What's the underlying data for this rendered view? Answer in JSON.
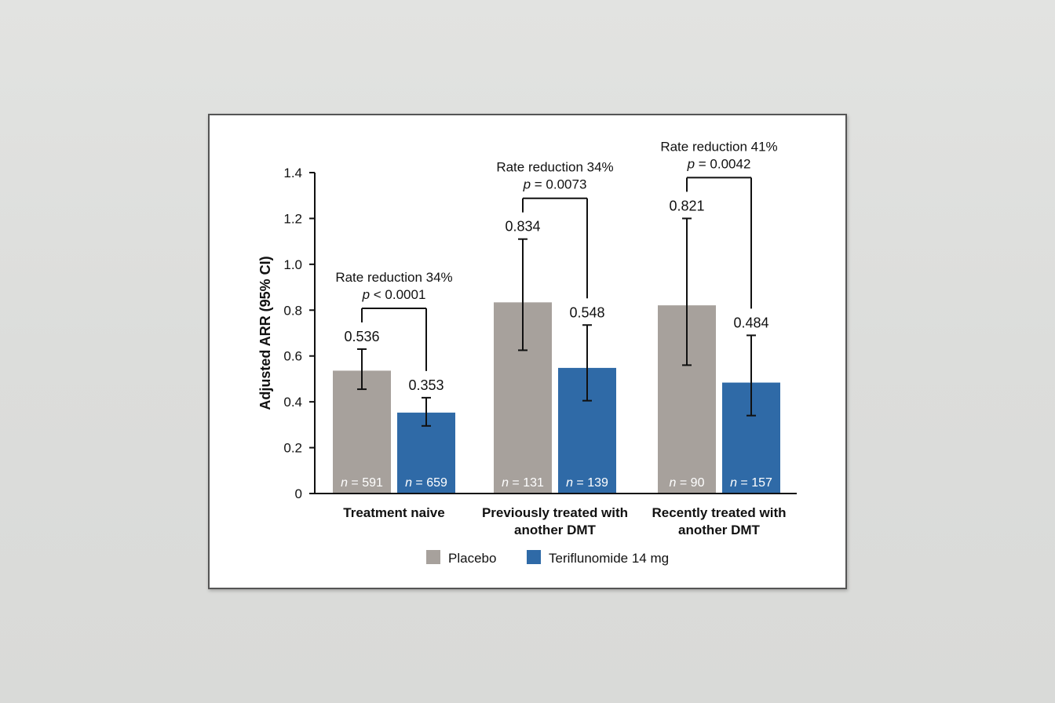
{
  "chart_data": {
    "type": "bar",
    "ylabel": "Adjusted ARR (95% CI)",
    "ylim": [
      0,
      1.4
    ],
    "yticks": [
      "0",
      "0.2",
      "0.4",
      "0.6",
      "0.8",
      "1.0",
      "1.2",
      "1.4"
    ],
    "categories": [
      [
        "Treatment naive"
      ],
      [
        "Previously treated with",
        "another DMT"
      ],
      [
        "Recently treated with",
        "another DMT"
      ]
    ],
    "series": [
      {
        "name": "Placebo",
        "color": "#a7a19c",
        "values": [
          0.536,
          0.834,
          0.821
        ],
        "value_labels": [
          "0.536",
          "0.834",
          "0.821"
        ],
        "ci": [
          [
            0.455,
            0.63
          ],
          [
            0.625,
            1.11
          ],
          [
            0.56,
            1.2
          ]
        ],
        "n_labels": [
          "591",
          "131",
          "90"
        ]
      },
      {
        "name": "Teriflunomide 14 mg",
        "color": "#2f6aa7",
        "values": [
          0.353,
          0.548,
          0.484
        ],
        "value_labels": [
          "0.353",
          "0.548",
          "0.484"
        ],
        "ci": [
          [
            0.295,
            0.418
          ],
          [
            0.405,
            0.735
          ],
          [
            0.34,
            0.69
          ]
        ],
        "n_labels": [
          "659",
          "139",
          "157"
        ]
      }
    ],
    "n_prefix": "n",
    "n_sep": " = ",
    "annotations": [
      {
        "line1": "Rate reduction 34%",
        "p_letter": "p",
        "p_text": " < 0.0001"
      },
      {
        "line1": "Rate reduction 34%",
        "p_letter": "p",
        "p_text": " = 0.0073"
      },
      {
        "line1": "Rate reduction 41%",
        "p_letter": "p",
        "p_text": " = 0.0042"
      }
    ],
    "legend": {
      "placement": "bottom",
      "entries": [
        "Placebo",
        "Teriflunomide 14 mg"
      ]
    }
  }
}
